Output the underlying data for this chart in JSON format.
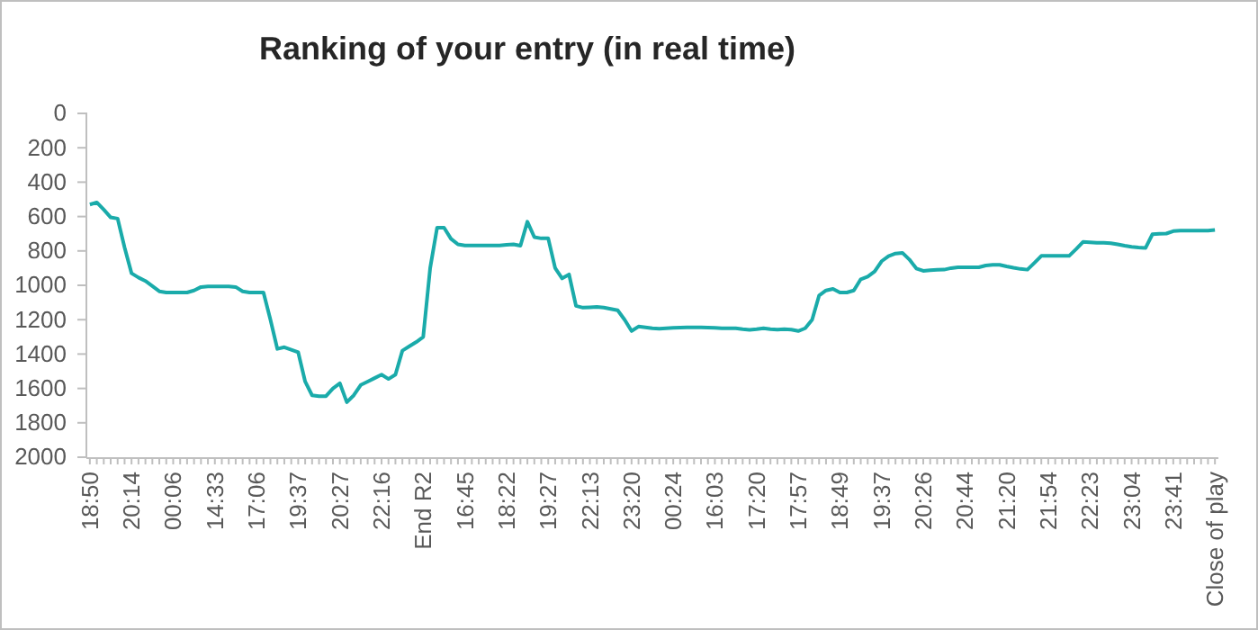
{
  "chart_data": {
    "type": "line",
    "title": "Ranking of your entry (in real time)",
    "categories": [
      "18:50",
      null,
      null,
      null,
      null,
      null,
      "20:14",
      null,
      null,
      null,
      null,
      null,
      "00:06",
      null,
      null,
      null,
      null,
      null,
      "14:33",
      null,
      null,
      null,
      null,
      null,
      "17:06",
      null,
      null,
      null,
      null,
      null,
      "19:37",
      null,
      null,
      null,
      null,
      null,
      "20:27",
      null,
      null,
      null,
      null,
      null,
      "22:16",
      null,
      null,
      null,
      null,
      null,
      "End R2",
      null,
      null,
      null,
      null,
      null,
      "16:45",
      null,
      null,
      null,
      null,
      null,
      "18:22",
      null,
      null,
      null,
      null,
      null,
      "19:27",
      null,
      null,
      null,
      null,
      null,
      "22:13",
      null,
      null,
      null,
      null,
      null,
      "23:20",
      null,
      null,
      null,
      null,
      null,
      "00:24",
      null,
      null,
      null,
      null,
      null,
      "16:03",
      null,
      null,
      null,
      null,
      null,
      "17:20",
      null,
      null,
      null,
      null,
      null,
      "17:57",
      null,
      null,
      null,
      null,
      null,
      "18:49",
      null,
      null,
      null,
      null,
      null,
      "19:37",
      null,
      null,
      null,
      null,
      null,
      "20:26",
      null,
      null,
      null,
      null,
      null,
      "20:44",
      null,
      null,
      null,
      null,
      null,
      "21:20",
      null,
      null,
      null,
      null,
      null,
      "21:54",
      null,
      null,
      null,
      null,
      null,
      "22:23",
      null,
      null,
      null,
      null,
      null,
      "23:04",
      null,
      null,
      null,
      null,
      null,
      "23:41",
      null,
      null,
      null,
      null,
      null,
      "Close of play"
    ],
    "series": [
      {
        "color": "#1aabaa",
        "values": [
          530,
          518,
          560,
          605,
          612,
          780,
          930,
          955,
          975,
          1005,
          1035,
          1042,
          1042,
          1042,
          1042,
          1030,
          1010,
          1007,
          1007,
          1007,
          1007,
          1010,
          1035,
          1042,
          1042,
          1042,
          1200,
          1370,
          1360,
          1375,
          1390,
          1560,
          1640,
          1645,
          1645,
          1600,
          1570,
          1680,
          1640,
          1580,
          1560,
          1540,
          1520,
          1545,
          1520,
          1380,
          1355,
          1330,
          1300,
          900,
          665,
          665,
          730,
          762,
          768,
          768,
          768,
          768,
          768,
          768,
          765,
          762,
          770,
          630,
          720,
          727,
          727,
          900,
          960,
          937,
          1120,
          1130,
          1128,
          1126,
          1130,
          1137,
          1145,
          1200,
          1266,
          1240,
          1245,
          1250,
          1252,
          1250,
          1248,
          1246,
          1245,
          1245,
          1245,
          1246,
          1248,
          1250,
          1250,
          1250,
          1255,
          1259,
          1255,
          1250,
          1255,
          1258,
          1255,
          1258,
          1266,
          1250,
          1200,
          1060,
          1030,
          1021,
          1042,
          1042,
          1030,
          965,
          950,
          920,
          860,
          830,
          815,
          811,
          850,
          902,
          916,
          912,
          910,
          909,
          900,
          895,
          895,
          895,
          895,
          885,
          881,
          881,
          890,
          898,
          905,
          909,
          870,
          829,
          829,
          829,
          829,
          829,
          790,
          748,
          750,
          752,
          753,
          755,
          762,
          770,
          776,
          780,
          783,
          703,
          700,
          699,
          685,
          682,
          682,
          682,
          682,
          682,
          678
        ]
      }
    ],
    "ylim": [
      2000,
      0
    ],
    "yticks": [
      0,
      200,
      400,
      600,
      800,
      1000,
      1200,
      1400,
      1600,
      1800,
      2000
    ],
    "grid": false,
    "marker": "none",
    "line_style": "solid"
  }
}
